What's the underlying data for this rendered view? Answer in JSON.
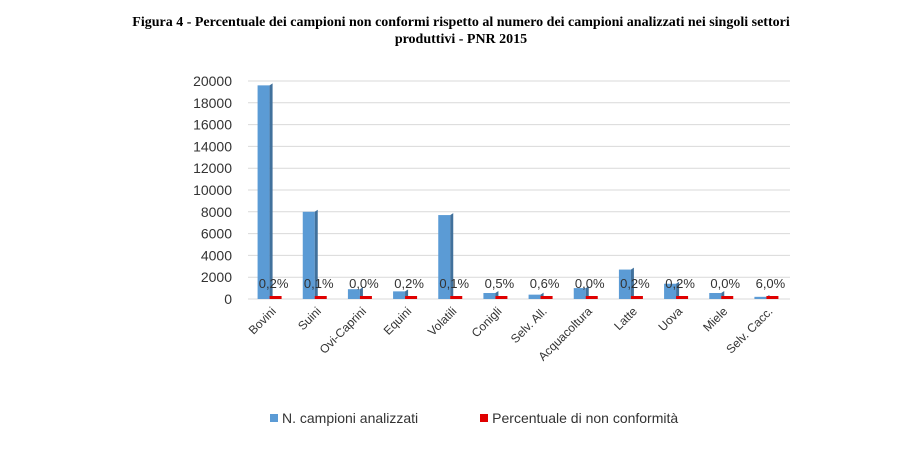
{
  "title_line1": "Figura 4 - Percentuale dei campioni non conformi rispetto al numero dei campioni analizzati nei singoli settori",
  "title_line2": "produttivi - PNR 2015",
  "chart_data": {
    "type": "bar",
    "categories": [
      "Bovini",
      "Suini",
      "Ovi-Caprini",
      "Equini",
      "Volatili",
      "Conigli",
      "Selv. All.",
      "Acquacoltura",
      "Latte",
      "Uova",
      "Miele",
      "Selv. Cacc."
    ],
    "series": [
      {
        "name": "N. campioni analizzati",
        "color": "#5b9bd5",
        "values": [
          19600,
          8000,
          900,
          700,
          7700,
          550,
          400,
          1000,
          2700,
          1400,
          550,
          200
        ]
      },
      {
        "name": "Percentuale di non conformità",
        "color": "#e00000",
        "values": [
          0.2,
          0.1,
          0.0,
          0.2,
          0.1,
          0.5,
          0.6,
          0.0,
          0.2,
          0.2,
          0.0,
          6.0
        ],
        "labels": [
          "0,2%",
          "0,1%",
          "0,0%",
          "0,2%",
          "0,1%",
          "0,5%",
          "0,6%",
          "0,0%",
          "0,2%",
          "0,2%",
          "0,0%",
          "6,0%"
        ]
      }
    ],
    "y_ticks": [
      "20000",
      "18000",
      "16000",
      "14000",
      "12000",
      "10000",
      "8000",
      "6000",
      "4000",
      "2000",
      "0"
    ],
    "ylim": [
      0,
      20000
    ],
    "grid": true,
    "legend_position": "bottom",
    "xlabel": "",
    "ylabel": ""
  }
}
